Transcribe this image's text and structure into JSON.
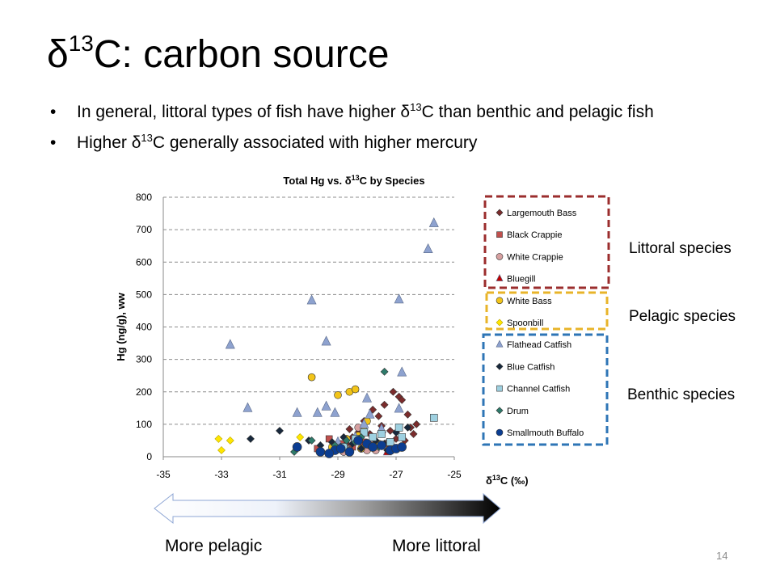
{
  "slide": {
    "title_prefix": "δ",
    "title_sup": "13",
    "title_suffix": "C: carbon source",
    "bullets": [
      {
        "pre": "In general, littoral types of fish have higher δ",
        "sup": "13",
        "post": "C than benthic and pelagic fish"
      },
      {
        "pre": "Higher δ",
        "sup": "13",
        "post": "C generally associated with higher mercury"
      }
    ],
    "bullet_symbol": "•",
    "page_number": "14",
    "arrow_left_label": "More pelagic",
    "arrow_right_label": "More littoral"
  },
  "groups": [
    {
      "label": "Littoral species",
      "color": "#9b2d2d",
      "species": [
        "Largemouth Bass",
        "Black Crappie",
        "White Crappie",
        "Bluegill"
      ]
    },
    {
      "label": "Pelagic species",
      "color": "#e8b42a",
      "species": [
        "White Bass",
        "Spoonbill"
      ]
    },
    {
      "label": "Benthic species",
      "color": "#2e75b6",
      "species": [
        "Flathead Catfish",
        "Blue Catfish",
        "Channel Catfish",
        "Drum",
        "Smallmouth Buffalo"
      ]
    }
  ],
  "chart_data": {
    "type": "scatter",
    "title_pre": "Total Hg vs. δ",
    "title_sup": "13",
    "title_post": "C by Species",
    "ylabel": "Hg (ng/g), ww",
    "xlabel_pre": "δ",
    "xlabel_sup": "13",
    "xlabel_post": "C (‰)",
    "xlim": [
      -35,
      -25
    ],
    "ylim": [
      0,
      800
    ],
    "xticks": [
      -35,
      -33,
      -31,
      -29,
      -27,
      -25
    ],
    "yticks": [
      0,
      100,
      200,
      300,
      400,
      500,
      600,
      700,
      800
    ],
    "grid": "horizontal dashed",
    "legend_position": "right",
    "series": [
      {
        "name": "Largemouth Bass",
        "marker": "diamond",
        "color": "#7b2c2c",
        "points": [
          [
            -28.1,
            110
          ],
          [
            -27.8,
            145
          ],
          [
            -27.6,
            125
          ],
          [
            -27.4,
            160
          ],
          [
            -27.1,
            200
          ],
          [
            -26.9,
            185
          ],
          [
            -26.8,
            175
          ],
          [
            -26.6,
            130
          ],
          [
            -26.3,
            100
          ],
          [
            -26.4,
            70
          ],
          [
            -27.2,
            80
          ],
          [
            -27.5,
            95
          ],
          [
            -28.3,
            75
          ],
          [
            -28.5,
            60
          ],
          [
            -27.9,
            70
          ],
          [
            -27.0,
            55
          ],
          [
            -26.7,
            50
          ],
          [
            -28.7,
            40
          ],
          [
            -28.0,
            35
          ],
          [
            -27.3,
            45
          ],
          [
            -26.5,
            90
          ],
          [
            -28.6,
            85
          ],
          [
            -27.7,
            30
          ],
          [
            -29.0,
            30
          ]
        ]
      },
      {
        "name": "Black Crappie",
        "marker": "square",
        "color": "#c0504d",
        "points": [
          [
            -29.3,
            55
          ],
          [
            -28.9,
            40
          ],
          [
            -28.5,
            30
          ],
          [
            -28.1,
            45
          ],
          [
            -27.8,
            35
          ],
          [
            -27.3,
            40
          ],
          [
            -29.7,
            25
          ]
        ]
      },
      {
        "name": "White Crappie",
        "marker": "circle",
        "color": "#d6a0a0",
        "points": [
          [
            -28.4,
            50
          ],
          [
            -28.2,
            25
          ],
          [
            -28.6,
            20
          ],
          [
            -28.0,
            20
          ],
          [
            -27.9,
            40
          ],
          [
            -28.8,
            15
          ],
          [
            -29.1,
            30
          ],
          [
            -28.3,
            90
          ],
          [
            -27.7,
            20
          ]
        ]
      },
      {
        "name": "Bluegill",
        "marker": "triangle",
        "color": "#c00000",
        "points": [
          [
            -27.3,
            15
          ]
        ]
      },
      {
        "name": "White Bass",
        "marker": "circle",
        "color": "#f2c419",
        "points": [
          [
            -29.9,
            245
          ],
          [
            -29.0,
            190
          ],
          [
            -28.6,
            200
          ],
          [
            -28.4,
            208
          ],
          [
            -28.0,
            110
          ],
          [
            -28.1,
            80
          ],
          [
            -28.3,
            65
          ],
          [
            -27.6,
            40
          ],
          [
            -27.9,
            35
          ],
          [
            -28.7,
            55
          ],
          [
            -29.2,
            30
          ],
          [
            -28.2,
            25
          ]
        ]
      },
      {
        "name": "Spoonbill",
        "marker": "diamond",
        "color": "#ffe600",
        "points": [
          [
            -33.1,
            55
          ],
          [
            -32.7,
            50
          ],
          [
            -33.0,
            20
          ],
          [
            -30.3,
            60
          ]
        ]
      },
      {
        "name": "Flathead Catfish",
        "marker": "triangle",
        "color": "#8ea2cf",
        "points": [
          [
            -25.7,
            720
          ],
          [
            -25.9,
            640
          ],
          [
            -26.9,
            485
          ],
          [
            -29.9,
            482
          ],
          [
            -29.4,
            355
          ],
          [
            -32.7,
            345
          ],
          [
            -26.8,
            260
          ],
          [
            -28.0,
            180
          ],
          [
            -27.9,
            130
          ],
          [
            -29.4,
            155
          ],
          [
            -32.1,
            150
          ],
          [
            -29.7,
            135
          ],
          [
            -29.1,
            135
          ],
          [
            -30.4,
            135
          ],
          [
            -26.9,
            148
          ],
          [
            -28.1,
            100
          ],
          [
            -27.5,
            85
          ],
          [
            -28.4,
            60
          ],
          [
            -29.0,
            45
          ]
        ]
      },
      {
        "name": "Blue Catfish",
        "marker": "diamond",
        "color": "#17283c",
        "points": [
          [
            -32.0,
            55
          ],
          [
            -31.0,
            80
          ],
          [
            -30.0,
            50
          ],
          [
            -29.2,
            45
          ],
          [
            -28.8,
            60
          ],
          [
            -28.5,
            40
          ],
          [
            -28.2,
            25
          ],
          [
            -27.7,
            50
          ],
          [
            -27.4,
            40
          ],
          [
            -27.0,
            75
          ],
          [
            -26.6,
            90
          ],
          [
            -27.3,
            20
          ],
          [
            -28.9,
            25
          ],
          [
            -29.6,
            35
          ]
        ]
      },
      {
        "name": "Channel Catfish",
        "marker": "square",
        "color": "#9ed0e0",
        "points": [
          [
            -25.7,
            120
          ],
          [
            -26.9,
            90
          ],
          [
            -27.5,
            70
          ],
          [
            -27.8,
            60
          ],
          [
            -28.1,
            75
          ],
          [
            -28.4,
            55
          ],
          [
            -27.2,
            45
          ],
          [
            -26.8,
            60
          ],
          [
            -28.8,
            30
          ]
        ]
      },
      {
        "name": "Drum",
        "marker": "diamond",
        "color": "#2e7b6b",
        "points": [
          [
            -27.4,
            262
          ],
          [
            -28.7,
            50
          ],
          [
            -29.1,
            35
          ],
          [
            -29.9,
            50
          ],
          [
            -30.5,
            15
          ],
          [
            -28.2,
            60
          ],
          [
            -27.6,
            30
          ],
          [
            -28.4,
            45
          ],
          [
            -28.9,
            30
          ]
        ]
      },
      {
        "name": "Smallmouth Buffalo",
        "marker": "circle",
        "color": "#0b3d91",
        "points": [
          [
            -30.4,
            30
          ],
          [
            -29.6,
            15
          ],
          [
            -29.1,
            20
          ],
          [
            -28.9,
            25
          ],
          [
            -28.3,
            50
          ],
          [
            -28.0,
            40
          ],
          [
            -27.8,
            30
          ],
          [
            -27.5,
            35
          ],
          [
            -27.2,
            20
          ],
          [
            -27.0,
            25
          ],
          [
            -26.8,
            30
          ],
          [
            -28.6,
            15
          ],
          [
            -29.3,
            10
          ]
        ]
      }
    ]
  }
}
